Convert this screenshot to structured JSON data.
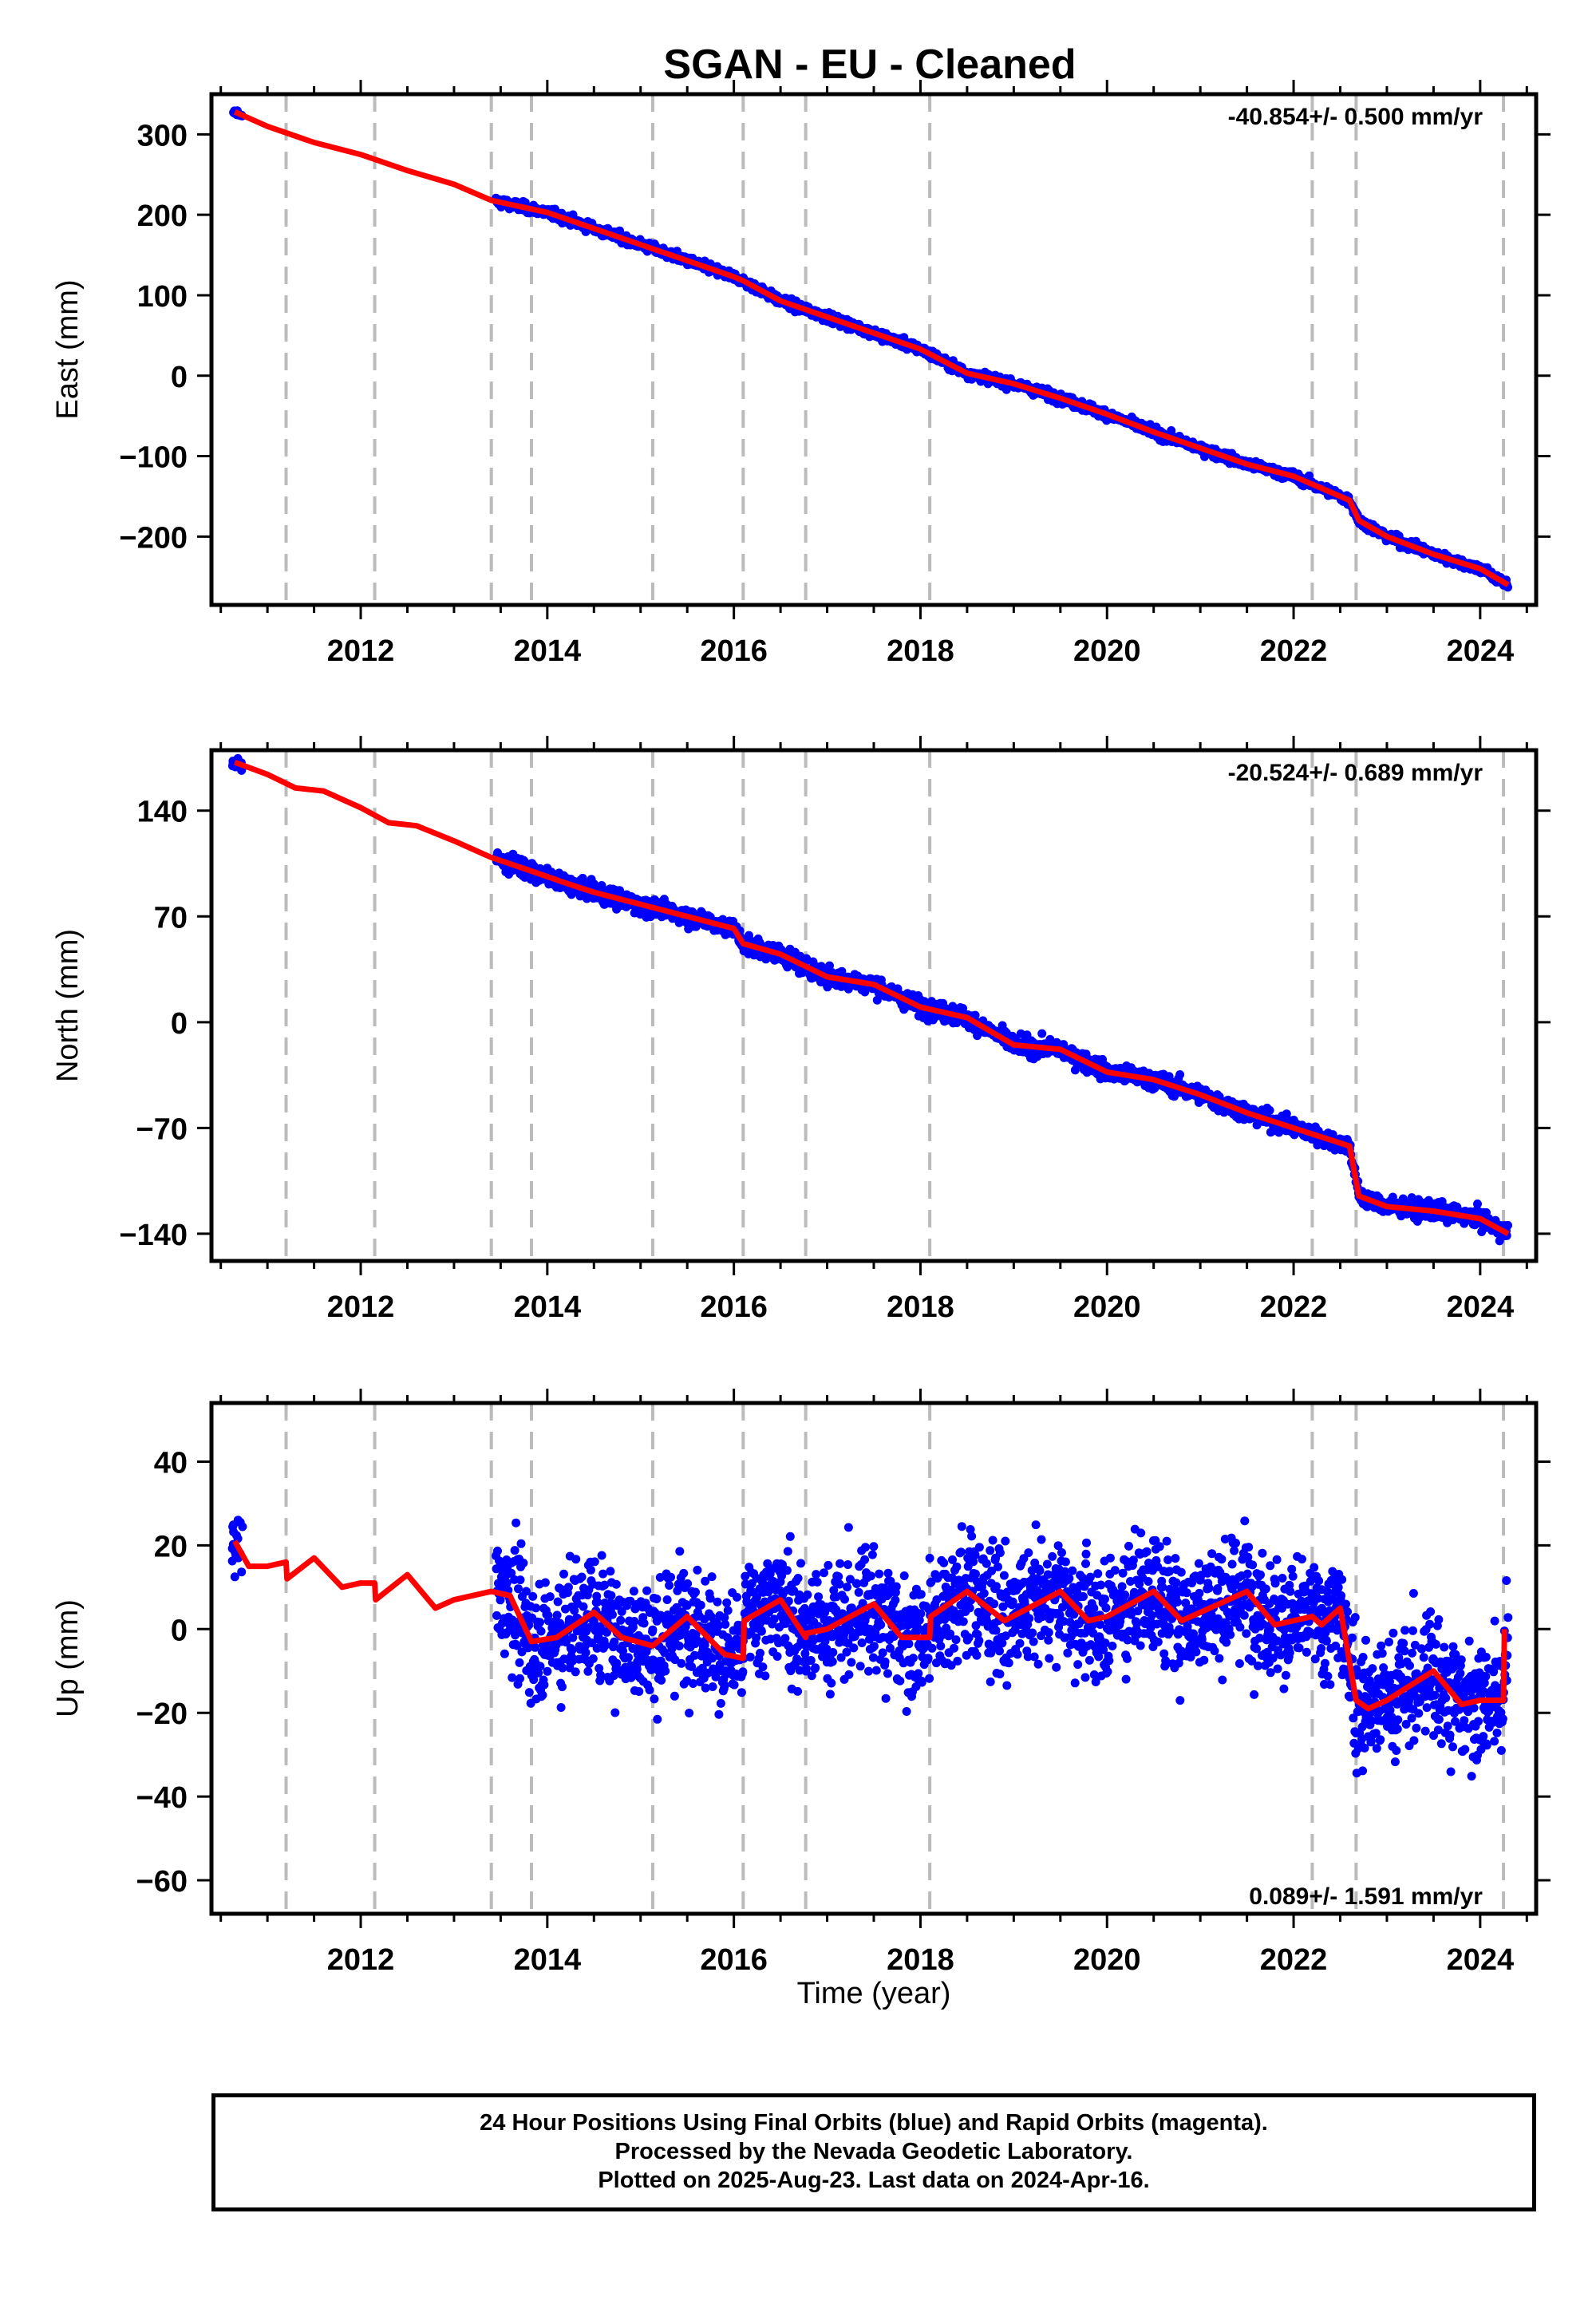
{
  "title": "SGAN  - EU - Cleaned",
  "colors": {
    "data": "#0000ff",
    "model": "#ff0000",
    "event_line": "#bbbbbb",
    "frame": "#000000"
  },
  "xlabel": "Time (year)",
  "chart_data": [
    {
      "type": "scatter",
      "component": "east",
      "ylabel": "East (mm)",
      "rate_label": "-40.854+/- 0.500 mm/yr",
      "xlim": [
        2010.4,
        2024.6
      ],
      "ylim": [
        -285,
        350
      ],
      "xticks": [
        2012,
        2014,
        2016,
        2018,
        2020,
        2022,
        2024
      ],
      "yticks": [
        300,
        200,
        100,
        0,
        -100,
        -200
      ],
      "ytick_labels": [
        "300",
        "200",
        "100",
        "0",
        "−100",
        "−200"
      ],
      "event_lines": [
        2011.2,
        2012.15,
        2013.4,
        2013.83,
        2015.13,
        2016.1,
        2016.77,
        2018.1,
        2022.2,
        2022.67,
        2024.25
      ],
      "model": {
        "x": [
          2010.65,
          2011.0,
          2011.5,
          2012.0,
          2012.5,
          2013.0,
          2013.4,
          2014.0,
          2014.5,
          2015.0,
          2015.5,
          2016.0,
          2016.1,
          2016.5,
          2017.0,
          2017.5,
          2018.0,
          2018.5,
          2019.0,
          2019.5,
          2020.0,
          2020.5,
          2021.0,
          2021.5,
          2022.0,
          2022.6,
          2022.7,
          2023.0,
          2023.5,
          2024.0,
          2024.3
        ],
        "y": [
          328,
          310,
          290,
          275,
          255,
          238,
          218,
          203,
          183,
          163,
          143,
          123,
          118,
          93,
          73,
          53,
          33,
          3,
          -10,
          -28,
          -48,
          -70,
          -90,
          -110,
          -125,
          -155,
          -180,
          -200,
          -222,
          -240,
          -260
        ]
      },
      "observations": {
        "start": 2013.45,
        "end": 2024.3,
        "noise_mm": 5
      }
    },
    {
      "type": "scatter",
      "component": "north",
      "ylabel": "North (mm)",
      "rate_label": "-20.524+/- 0.689 mm/yr",
      "xlim": [
        2010.4,
        2024.6
      ],
      "ylim": [
        -158,
        180
      ],
      "xticks": [
        2012,
        2014,
        2016,
        2018,
        2020,
        2022,
        2024
      ],
      "yticks": [
        140,
        70,
        0,
        -70,
        -140
      ],
      "ytick_labels": [
        "140",
        "70",
        "0",
        "−70",
        "−140"
      ],
      "event_lines": [
        2011.2,
        2012.15,
        2013.4,
        2013.83,
        2015.13,
        2016.1,
        2016.77,
        2018.1,
        2022.2,
        2022.67,
        2024.25
      ],
      "model": {
        "x": [
          2010.65,
          2011.0,
          2011.3,
          2011.6,
          2012.0,
          2012.3,
          2012.6,
          2013.0,
          2013.4,
          2013.83,
          2014.2,
          2014.5,
          2015.0,
          2015.5,
          2016.0,
          2016.1,
          2016.5,
          2017.0,
          2017.5,
          2018.0,
          2018.5,
          2019.0,
          2019.5,
          2020.0,
          2020.5,
          2021.0,
          2021.5,
          2022.0,
          2022.6,
          2022.7,
          2023.0,
          2023.5,
          2024.0,
          2024.3
        ],
        "y": [
          172,
          164,
          155,
          153,
          142,
          132,
          130,
          120,
          109,
          100,
          92,
          86,
          78,
          70,
          62,
          52,
          45,
          30,
          25,
          10,
          3,
          -15,
          -18,
          -33,
          -38,
          -48,
          -60,
          -70,
          -82,
          -115,
          -122,
          -125,
          -130,
          -140
        ]
      },
      "observations": {
        "start": 2013.45,
        "end": 2024.3,
        "noise_mm": 5
      }
    },
    {
      "type": "scatter",
      "component": "up",
      "ylabel": "Up (mm)",
      "rate_label": "0.089+/- 1.591 mm/yr",
      "xlim": [
        2010.4,
        2024.6
      ],
      "ylim": [
        -68,
        54
      ],
      "xticks": [
        2012,
        2014,
        2016,
        2018,
        2020,
        2022,
        2024
      ],
      "yticks": [
        40,
        20,
        0,
        -20,
        -40,
        -60
      ],
      "ytick_labels": [
        "40",
        "20",
        "0",
        "−20",
        "−40",
        "−60"
      ],
      "event_lines": [
        2011.2,
        2012.15,
        2013.4,
        2013.83,
        2015.13,
        2016.1,
        2016.77,
        2018.1,
        2022.2,
        2022.67,
        2024.25
      ],
      "model": {
        "x": [
          2010.65,
          2010.8,
          2011.0,
          2011.2,
          2011.21,
          2011.5,
          2011.8,
          2012.0,
          2012.15,
          2012.16,
          2012.5,
          2012.8,
          2013.0,
          2013.4,
          2013.6,
          2013.83,
          2014.1,
          2014.5,
          2014.8,
          2015.13,
          2015.5,
          2015.9,
          2016.1,
          2016.11,
          2016.5,
          2016.77,
          2016.78,
          2017.0,
          2017.5,
          2017.8,
          2018.1,
          2018.11,
          2018.5,
          2018.9,
          2019.5,
          2019.8,
          2020.0,
          2020.5,
          2020.8,
          2021.5,
          2021.8,
          2022.2,
          2022.3,
          2022.5,
          2022.67,
          2022.8,
          2023.0,
          2023.5,
          2023.8,
          2024.0,
          2024.25,
          2024.26
        ],
        "y": [
          21,
          15,
          15,
          16,
          12,
          17,
          10,
          11,
          11,
          7,
          13,
          5,
          7,
          9,
          8,
          -3,
          -2,
          4,
          -2,
          -4,
          3,
          -6,
          -7,
          2,
          7,
          -2,
          -1,
          0,
          6,
          -2,
          -2,
          3,
          9,
          2,
          9,
          2,
          3,
          9,
          2,
          9,
          1,
          3,
          1,
          5,
          -17,
          -19,
          -17,
          -10,
          -18,
          -17,
          -17,
          0
        ]
      },
      "observations": {
        "start": 2013.45,
        "end": 2024.3,
        "noise_mm": 12
      }
    }
  ],
  "footer": {
    "line1": "24 Hour Positions Using Final Orbits (blue) and Rapid Orbits (magenta).",
    "line2": "Processed by the Nevada Geodetic Laboratory.",
    "line3": "Plotted on 2025-Aug-23. Last data on 2024-Apr-16."
  }
}
